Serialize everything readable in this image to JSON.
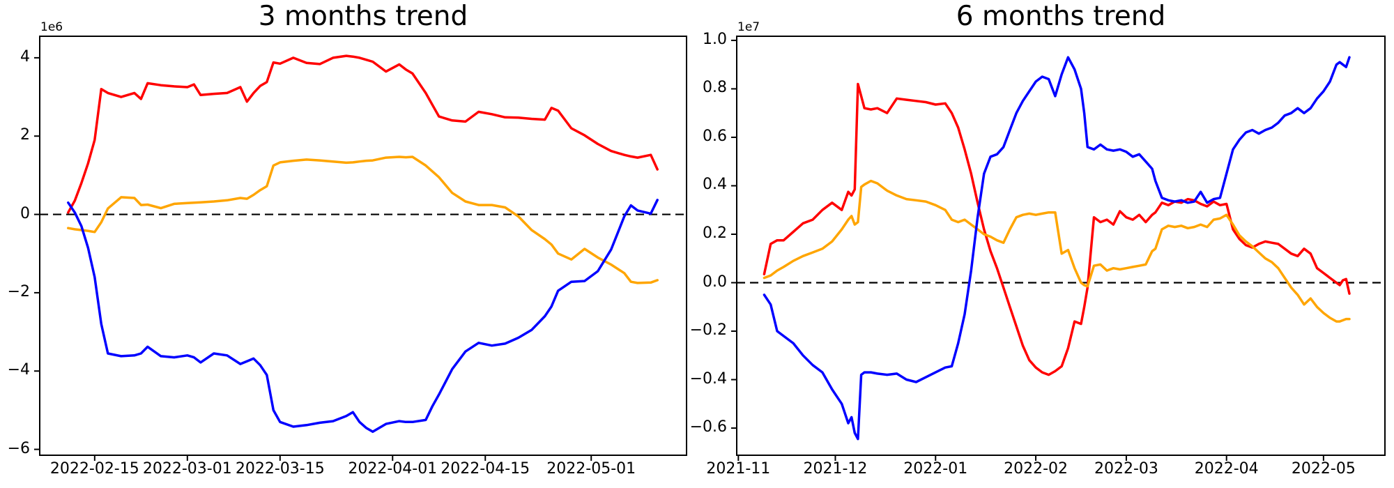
{
  "figure": {
    "background": "#ffffff",
    "text_color": "#000000"
  },
  "chart_data": [
    {
      "type": "line",
      "title": "3 months trend",
      "offset_label": "1e6",
      "value_unit": "1e6",
      "start_date": "2022-02-11",
      "xlim_days": [
        -4.3,
        93.4
      ],
      "ylim": [
        -6.15,
        4.55
      ],
      "grid": false,
      "legend": "none",
      "zero_dashed_line": true,
      "x_tick_days": [
        4,
        18,
        32,
        49,
        63,
        79
      ],
      "x_tick_labels": [
        "2022-02-15",
        "2022-03-01",
        "2022-03-15",
        "2022-04-01",
        "2022-04-15",
        "2022-05-01"
      ],
      "y_ticks": [
        4,
        2,
        0,
        -2,
        -4,
        -6
      ],
      "y_tick_labels": [
        "4",
        "2",
        "0",
        "−2",
        "−4",
        "−6"
      ],
      "x_days": [
        0,
        1,
        2,
        3,
        4,
        5,
        6,
        8,
        10,
        11,
        12,
        14,
        16,
        18,
        19,
        20,
        22,
        24,
        26,
        27,
        28,
        29,
        30,
        31,
        32,
        34,
        36,
        38,
        40,
        42,
        43,
        44,
        45,
        46,
        48,
        50,
        51,
        52,
        54,
        55,
        56,
        58,
        60,
        62,
        64,
        66,
        68,
        70,
        72,
        73,
        74,
        76,
        78,
        80,
        82,
        84,
        85,
        86,
        88,
        89
      ],
      "series": [
        {
          "name": "red",
          "color": "#ff0000",
          "values": [
            0.05,
            0.35,
            0.8,
            1.3,
            1.9,
            3.2,
            3.1,
            3.0,
            3.1,
            2.95,
            3.35,
            3.3,
            3.27,
            3.25,
            3.32,
            3.05,
            3.08,
            3.1,
            3.25,
            2.88,
            3.1,
            3.28,
            3.38,
            3.88,
            3.85,
            4.0,
            3.87,
            3.84,
            4.0,
            4.05,
            4.03,
            4.0,
            3.95,
            3.9,
            3.65,
            3.83,
            3.7,
            3.6,
            3.1,
            2.8,
            2.5,
            2.4,
            2.37,
            2.62,
            2.56,
            2.48,
            2.47,
            2.44,
            2.42,
            2.72,
            2.65,
            2.2,
            2.02,
            1.8,
            1.62,
            1.52,
            1.48,
            1.45,
            1.52,
            1.15
          ]
        },
        {
          "name": "orange",
          "color": "#ffa500",
          "values": [
            -0.35,
            -0.38,
            -0.4,
            -0.42,
            -0.45,
            -0.2,
            0.15,
            0.44,
            0.42,
            0.24,
            0.25,
            0.16,
            0.27,
            0.29,
            0.3,
            0.31,
            0.33,
            0.36,
            0.42,
            0.4,
            0.5,
            0.62,
            0.72,
            1.25,
            1.33,
            1.37,
            1.4,
            1.38,
            1.35,
            1.32,
            1.33,
            1.35,
            1.37,
            1.38,
            1.45,
            1.47,
            1.46,
            1.47,
            1.25,
            1.1,
            0.95,
            0.55,
            0.33,
            0.24,
            0.24,
            0.18,
            -0.05,
            -0.4,
            -0.63,
            -0.77,
            -1.0,
            -1.15,
            -0.88,
            -1.1,
            -1.28,
            -1.5,
            -1.72,
            -1.75,
            -1.74,
            -1.68
          ]
        },
        {
          "name": "blue",
          "color": "#0000ff",
          "values": [
            0.3,
            0.05,
            -0.3,
            -0.85,
            -1.6,
            -2.8,
            -3.55,
            -3.62,
            -3.6,
            -3.55,
            -3.38,
            -3.62,
            -3.65,
            -3.6,
            -3.65,
            -3.78,
            -3.55,
            -3.6,
            -3.82,
            -3.75,
            -3.68,
            -3.85,
            -4.1,
            -5.0,
            -5.3,
            -5.42,
            -5.38,
            -5.32,
            -5.28,
            -5.15,
            -5.05,
            -5.3,
            -5.45,
            -5.55,
            -5.35,
            -5.28,
            -5.3,
            -5.3,
            -5.25,
            -4.9,
            -4.6,
            -3.95,
            -3.5,
            -3.28,
            -3.35,
            -3.3,
            -3.15,
            -2.95,
            -2.6,
            -2.35,
            -1.95,
            -1.72,
            -1.7,
            -1.45,
            -0.9,
            -0.05,
            0.23,
            0.1,
            0.02,
            0.37
          ]
        }
      ]
    },
    {
      "type": "line",
      "title": "6 months trend",
      "offset_label": "1e7",
      "value_unit": "1e7",
      "start_date": "2021-11-09",
      "xlim_days": [
        -8.5,
        192
      ],
      "ylim": [
        -0.712,
        1.017
      ],
      "grid": false,
      "legend": "none",
      "zero_dashed_line": true,
      "x_tick_days": [
        -8,
        22,
        53,
        84,
        112,
        143,
        173
      ],
      "x_tick_labels": [
        "2021-11",
        "2021-12",
        "2022-01",
        "2022-02",
        "2022-03",
        "2022-04",
        "2022-05"
      ],
      "y_ticks": [
        1.0,
        0.8,
        0.6,
        0.4,
        0.2,
        0.0,
        -0.2,
        -0.4,
        -0.6
      ],
      "y_tick_labels": [
        "1.0",
        "0.8",
        "0.6",
        "0.4",
        "0.2",
        "0.0",
        "−0.2",
        "−0.4",
        "−0.6"
      ],
      "x_days": [
        0,
        2,
        4,
        6,
        9,
        12,
        15,
        18,
        21,
        24,
        26,
        27,
        28,
        29,
        30,
        31,
        33,
        35,
        38,
        41,
        44,
        47,
        50,
        53,
        56,
        58,
        60,
        62,
        64,
        66,
        68,
        70,
        72,
        74,
        76,
        78,
        80,
        82,
        84,
        86,
        88,
        90,
        92,
        94,
        96,
        98,
        99,
        100,
        102,
        104,
        106,
        108,
        110,
        112,
        114,
        116,
        118,
        120,
        121,
        123,
        125,
        127,
        129,
        131,
        133,
        135,
        137,
        139,
        141,
        143,
        145,
        147,
        149,
        151,
        153,
        155,
        157,
        159,
        161,
        163,
        165,
        167,
        169,
        171,
        173,
        175,
        177,
        178,
        179,
        180,
        181
      ],
      "series": [
        {
          "name": "red",
          "color": "#ff0000",
          "values": [
            0.035,
            0.16,
            0.175,
            0.175,
            0.21,
            0.245,
            0.26,
            0.3,
            0.33,
            0.3,
            0.375,
            0.36,
            0.385,
            0.82,
            0.77,
            0.72,
            0.715,
            0.72,
            0.7,
            0.76,
            0.755,
            0.75,
            0.745,
            0.735,
            0.74,
            0.7,
            0.64,
            0.55,
            0.45,
            0.33,
            0.22,
            0.13,
            0.06,
            -0.02,
            -0.1,
            -0.18,
            -0.26,
            -0.32,
            -0.35,
            -0.37,
            -0.38,
            -0.365,
            -0.345,
            -0.27,
            -0.16,
            -0.17,
            -0.1,
            -0.02,
            0.27,
            0.25,
            0.26,
            0.24,
            0.295,
            0.27,
            0.26,
            0.28,
            0.25,
            0.28,
            0.29,
            0.33,
            0.32,
            0.335,
            0.33,
            0.345,
            0.34,
            0.325,
            0.315,
            0.335,
            0.32,
            0.325,
            0.22,
            0.18,
            0.155,
            0.145,
            0.16,
            0.17,
            0.165,
            0.16,
            0.14,
            0.12,
            0.11,
            0.14,
            0.12,
            0.06,
            0.04,
            0.02,
            0.0,
            -0.01,
            0.01,
            0.015,
            -0.045
          ]
        },
        {
          "name": "orange",
          "color": "#ffa500",
          "values": [
            0.02,
            0.03,
            0.05,
            0.065,
            0.09,
            0.11,
            0.125,
            0.14,
            0.17,
            0.22,
            0.26,
            0.275,
            0.24,
            0.25,
            0.395,
            0.405,
            0.42,
            0.41,
            0.38,
            0.36,
            0.345,
            0.34,
            0.335,
            0.32,
            0.3,
            0.26,
            0.25,
            0.26,
            0.24,
            0.22,
            0.2,
            0.19,
            0.175,
            0.165,
            0.22,
            0.27,
            0.28,
            0.285,
            0.28,
            0.285,
            0.29,
            0.29,
            0.12,
            0.135,
            0.06,
            0.0,
            -0.01,
            -0.015,
            0.07,
            0.075,
            0.05,
            0.06,
            0.055,
            0.06,
            0.065,
            0.07,
            0.075,
            0.13,
            0.14,
            0.22,
            0.235,
            0.23,
            0.235,
            0.225,
            0.23,
            0.24,
            0.23,
            0.26,
            0.265,
            0.28,
            0.24,
            0.195,
            0.17,
            0.15,
            0.125,
            0.1,
            0.085,
            0.06,
            0.02,
            -0.02,
            -0.05,
            -0.09,
            -0.065,
            -0.1,
            -0.125,
            -0.145,
            -0.16,
            -0.16,
            -0.155,
            -0.15,
            -0.15
          ]
        },
        {
          "name": "blue",
          "color": "#0000ff",
          "values": [
            -0.05,
            -0.09,
            -0.2,
            -0.22,
            -0.25,
            -0.3,
            -0.34,
            -0.37,
            -0.44,
            -0.5,
            -0.58,
            -0.555,
            -0.62,
            -0.645,
            -0.38,
            -0.37,
            -0.37,
            -0.375,
            -0.38,
            -0.375,
            -0.4,
            -0.41,
            -0.39,
            -0.37,
            -0.35,
            -0.345,
            -0.25,
            -0.13,
            0.05,
            0.27,
            0.45,
            0.52,
            0.53,
            0.56,
            0.63,
            0.7,
            0.75,
            0.79,
            0.83,
            0.85,
            0.84,
            0.77,
            0.86,
            0.93,
            0.88,
            0.8,
            0.7,
            0.56,
            0.55,
            0.57,
            0.55,
            0.545,
            0.55,
            0.54,
            0.52,
            0.53,
            0.5,
            0.47,
            0.42,
            0.35,
            0.34,
            0.335,
            0.34,
            0.33,
            0.335,
            0.375,
            0.33,
            0.345,
            0.35,
            0.45,
            0.55,
            0.59,
            0.62,
            0.63,
            0.615,
            0.63,
            0.64,
            0.66,
            0.69,
            0.7,
            0.72,
            0.7,
            0.72,
            0.76,
            0.79,
            0.83,
            0.9,
            0.91,
            0.9,
            0.89,
            0.93
          ]
        }
      ]
    }
  ]
}
